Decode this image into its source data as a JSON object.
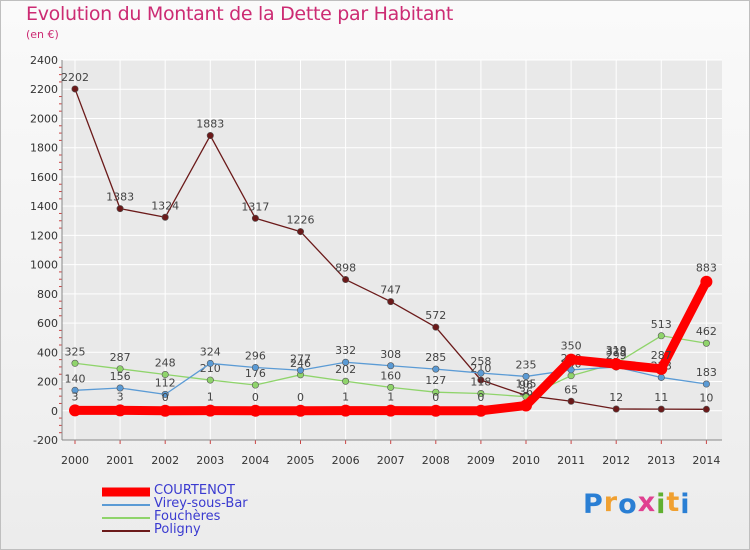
{
  "colors": {
    "title": "#cc2b73",
    "legend_text": "#3a3ad0",
    "axis_text": "#333333",
    "grid": "#ffffff"
  },
  "chart_data": {
    "type": "line",
    "title": "Evolution du Montant de la Dette par Habitant",
    "unit": "(en €)",
    "xlabel": "",
    "ylabel": "",
    "categories": [
      "2000",
      "2001",
      "2002",
      "2003",
      "2004",
      "2005",
      "2006",
      "2007",
      "2008",
      "2009",
      "2010",
      "2011",
      "2012",
      "2013",
      "2014"
    ],
    "ylim": [
      -200,
      2400
    ],
    "yticks": [
      -200,
      0,
      200,
      400,
      600,
      800,
      1000,
      1200,
      1400,
      1600,
      1800,
      2000,
      2200,
      2400
    ],
    "grid": true,
    "legend_position": "bottom-left",
    "series": [
      {
        "name": "Poligny",
        "color": "#6b1a1a",
        "values": [
          2202,
          1383,
          1324,
          1883,
          1317,
          1226,
          898,
          747,
          572,
          210,
          105,
          65,
          12,
          11,
          10
        ]
      },
      {
        "name": "Fouchères",
        "color": "#8fd46b",
        "values": [
          325,
          287,
          248,
          210,
          176,
          246,
          202,
          160,
          127,
          118,
          96,
          240,
          325,
          513,
          462
        ]
      },
      {
        "name": "Virey-sous-Bar",
        "color": "#5b9bd5",
        "values": [
          140,
          156,
          112,
          324,
          296,
          277,
          332,
          308,
          285,
          258,
          235,
          280,
          299,
          228,
          183
        ]
      },
      {
        "name": "COURTENOT",
        "color": "#ff0000",
        "values": [
          3,
          3,
          0,
          1,
          0,
          0,
          1,
          1,
          0,
          0,
          36,
          350,
          319,
          287,
          883
        ]
      }
    ],
    "legend_order": [
      "COURTENOT",
      "Virey-sous-Bar",
      "Fouchères",
      "Poligny"
    ]
  },
  "logo": {
    "letters": [
      "P",
      "r",
      "o",
      "x",
      "i",
      "t",
      "i"
    ],
    "colors": [
      "#2a7fd4",
      "#f0a030",
      "#2a7fd4",
      "#e04090",
      "#60b030",
      "#f0a030",
      "#2a7fd4"
    ]
  }
}
